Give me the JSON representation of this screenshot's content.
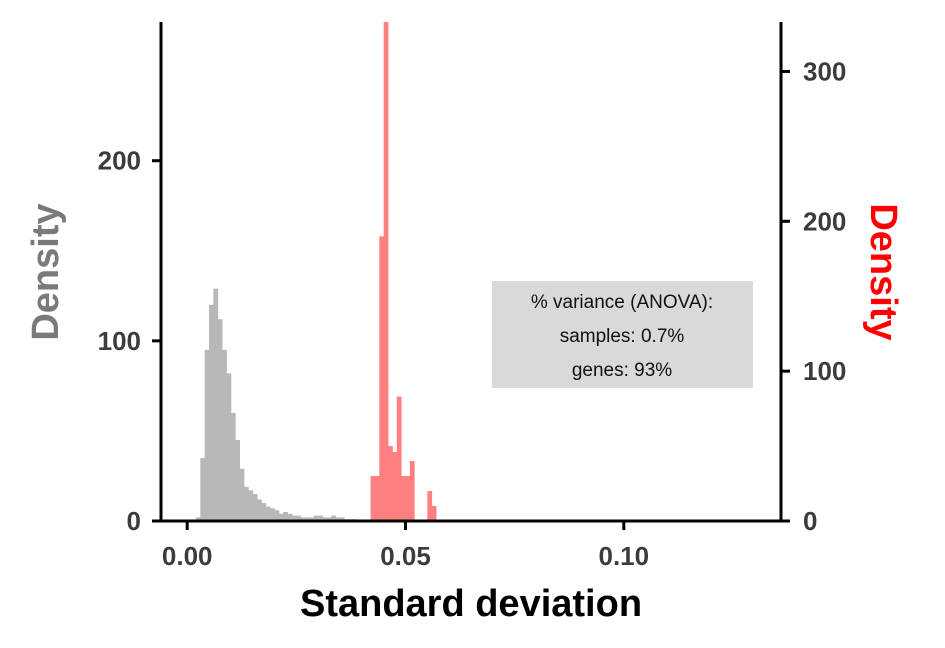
{
  "chart_data": {
    "type": "histogram",
    "xlabel": "Standard deviation",
    "ylabel_left": "Density",
    "ylabel_right": "Density",
    "xlim": [
      -0.006,
      0.136
    ],
    "ylim_left": [
      0,
      277
    ],
    "ylim_right": [
      0,
      333
    ],
    "x_ticks": [
      0.0,
      0.05,
      0.1
    ],
    "x_tick_labels": [
      "0.00",
      "0.05",
      "0.10"
    ],
    "y_ticks_left": [
      0,
      100,
      200
    ],
    "y_tick_labels_left": [
      "0",
      "100",
      "200"
    ],
    "y_ticks_right": [
      0,
      100,
      200,
      300
    ],
    "y_tick_labels_right": [
      "0",
      "100",
      "200",
      "300"
    ],
    "grid": false,
    "bin_width": 0.001,
    "series": [
      {
        "axis": "left",
        "color": "#b8b8b8",
        "bin_starts": [
          0.002,
          0.003,
          0.004,
          0.005,
          0.006,
          0.007,
          0.008,
          0.009,
          0.01,
          0.011,
          0.012,
          0.013,
          0.014,
          0.015,
          0.016,
          0.017,
          0.018,
          0.019,
          0.02,
          0.021,
          0.022,
          0.023,
          0.024,
          0.025,
          0.026,
          0.027,
          0.028,
          0.029,
          0.03,
          0.031,
          0.032,
          0.033,
          0.034,
          0.035,
          0.036,
          0.037,
          0.038
        ],
        "values": [
          2,
          35,
          95,
          120,
          129,
          112,
          95,
          82,
          60,
          45,
          29,
          19,
          17,
          15,
          12,
          10,
          8,
          7,
          6,
          4,
          5,
          4,
          3,
          3,
          2,
          2,
          2,
          3,
          3,
          2,
          2,
          3,
          2,
          2,
          1,
          1,
          1
        ]
      },
      {
        "axis": "right",
        "color": "#ff8080",
        "bin_starts": [
          0.042,
          0.043,
          0.044,
          0.045,
          0.046,
          0.047,
          0.048,
          0.049,
          0.05,
          0.051,
          0.052,
          0.053,
          0.054,
          0.055,
          0.056
        ],
        "values": [
          30,
          30,
          190,
          335,
          50,
          46,
          83,
          30,
          30,
          40,
          0,
          0,
          0,
          20,
          10
        ]
      }
    ],
    "annotation": {
      "lines": [
        "% variance (ANOVA):",
        "samples: 0.7%",
        "genes: 93%"
      ],
      "background": "#d9d9d9"
    },
    "colors": {
      "left_axis_title": "#7a7a7a",
      "right_axis_title": "#ff0000",
      "tick_labels": "#3c3c3c",
      "axis_line": "#000000"
    }
  }
}
